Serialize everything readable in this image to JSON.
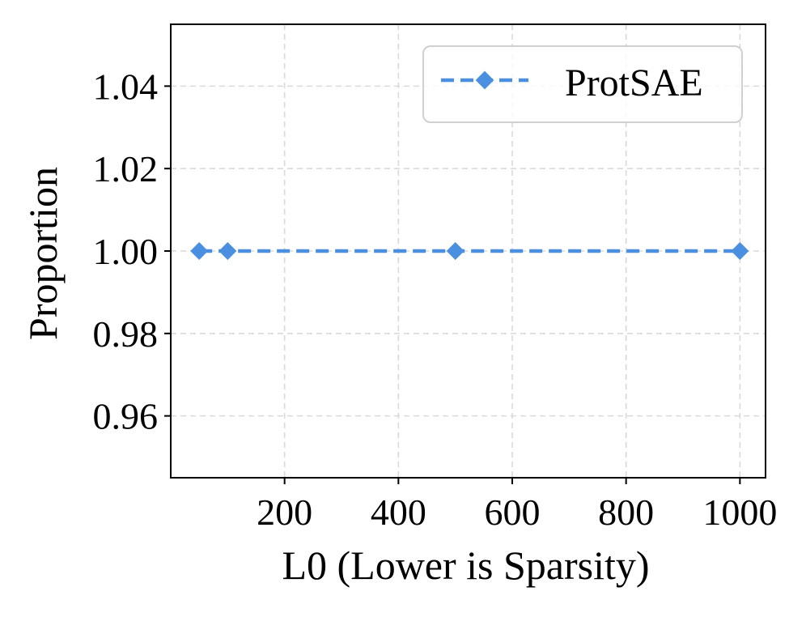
{
  "chart_data": {
    "type": "line",
    "title": "",
    "xlabel": "L0 (Lower is Sparsity)",
    "ylabel": "Proportion",
    "xlim": [
      0,
      1045
    ],
    "ylim": [
      0.945,
      1.055
    ],
    "xticks": [
      200,
      400,
      600,
      800,
      1000
    ],
    "xtick_labels": [
      "200",
      "400",
      "600",
      "800",
      "1000"
    ],
    "yticks": [
      0.96,
      0.98,
      1.0,
      1.02,
      1.04
    ],
    "ytick_labels": [
      "0.96",
      "0.98",
      "1.00",
      "1.02",
      "1.04"
    ],
    "grid": true,
    "legend_position": "top-right",
    "series": [
      {
        "name": "ProtSAE",
        "color": "#4a8fe0",
        "line_style": "dashed",
        "marker": "diamond",
        "x": [
          50,
          100,
          500,
          1000
        ],
        "y": [
          1.0,
          1.0,
          1.0,
          1.0
        ]
      }
    ]
  }
}
